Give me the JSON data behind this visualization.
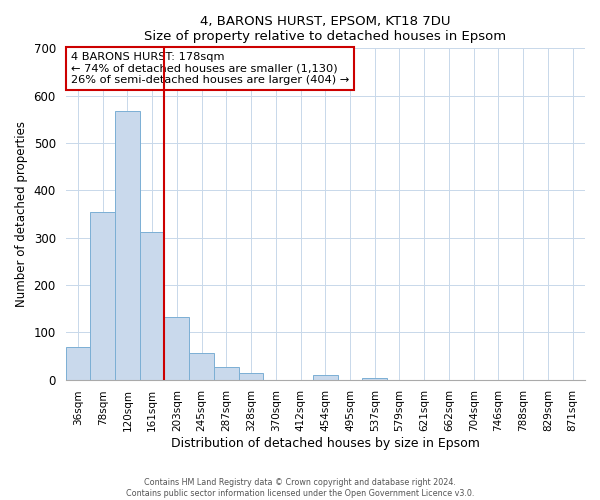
{
  "title": "4, BARONS HURST, EPSOM, KT18 7DU",
  "subtitle": "Size of property relative to detached houses in Epsom",
  "xlabel": "Distribution of detached houses by size in Epsom",
  "ylabel": "Number of detached properties",
  "bar_labels": [
    "36sqm",
    "78sqm",
    "120sqm",
    "161sqm",
    "203sqm",
    "245sqm",
    "287sqm",
    "328sqm",
    "370sqm",
    "412sqm",
    "454sqm",
    "495sqm",
    "537sqm",
    "579sqm",
    "621sqm",
    "662sqm",
    "704sqm",
    "746sqm",
    "788sqm",
    "829sqm",
    "871sqm"
  ],
  "bar_values": [
    68,
    355,
    567,
    312,
    133,
    57,
    27,
    14,
    0,
    0,
    10,
    0,
    3,
    0,
    0,
    0,
    0,
    0,
    0,
    0,
    0
  ],
  "bar_color": "#c9d9ec",
  "bar_edge_color": "#7bafd4",
  "vline_color": "#cc0000",
  "annotation_title": "4 BARONS HURST: 178sqm",
  "annotation_line1": "← 74% of detached houses are smaller (1,130)",
  "annotation_line2": "26% of semi-detached houses are larger (404) →",
  "annotation_box_color": "#cc0000",
  "ylim": [
    0,
    700
  ],
  "yticks": [
    0,
    100,
    200,
    300,
    400,
    500,
    600,
    700
  ],
  "footer1": "Contains HM Land Registry data © Crown copyright and database right 2024.",
  "footer2": "Contains public sector information licensed under the Open Government Licence v3.0."
}
